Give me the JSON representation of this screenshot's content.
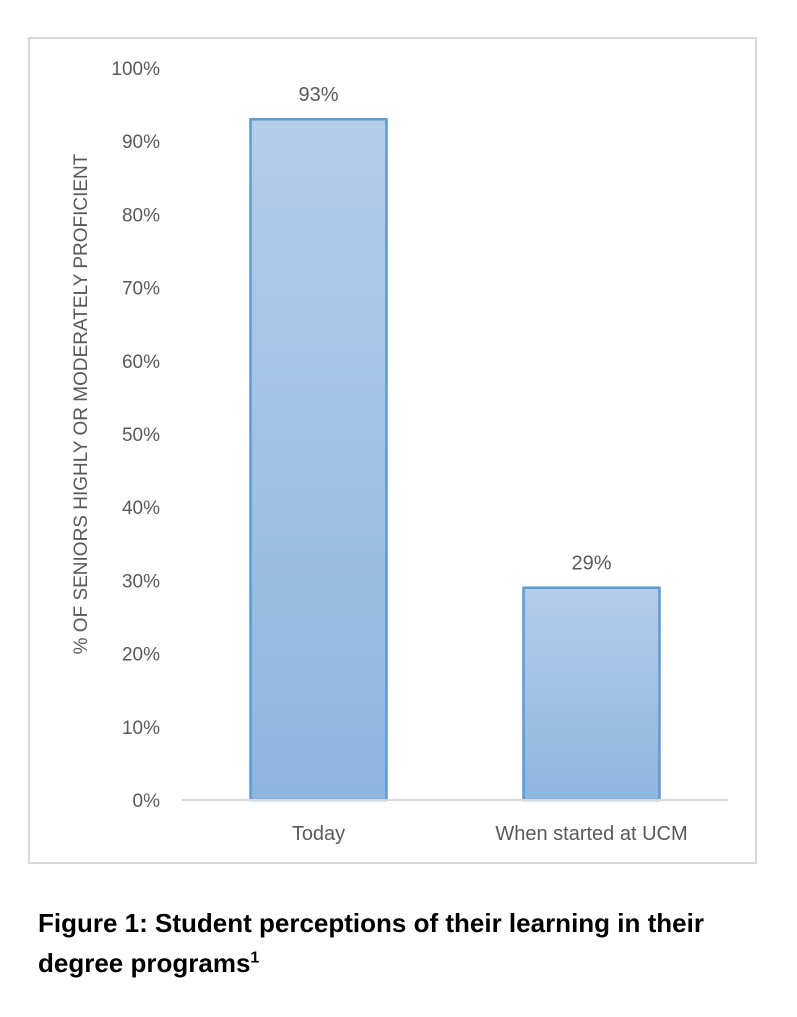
{
  "chart_data": {
    "type": "bar",
    "categories": [
      "Today",
      "When started at UCM"
    ],
    "values": [
      93,
      29
    ],
    "data_labels": [
      "93%",
      "29%"
    ],
    "ylabel": "% OF SENIORS HIGHLY OR MODERATELY PROFICIENT",
    "xlabel": "",
    "ylim": [
      0,
      100
    ],
    "y_ticks": [
      "0%",
      "10%",
      "20%",
      "30%",
      "40%",
      "50%",
      "60%",
      "70%",
      "80%",
      "90%",
      "100%"
    ],
    "grid": false,
    "legend": "none",
    "bar_fill_top": "#b4cde9",
    "bar_fill_bottom": "#8fb4e0",
    "bar_stroke": "#5b9bd5",
    "axis_color": "#d9d9d9"
  },
  "caption": {
    "text": "Figure 1: Student perceptions of their learning in their degree programs",
    "footnote_mark": "1"
  }
}
